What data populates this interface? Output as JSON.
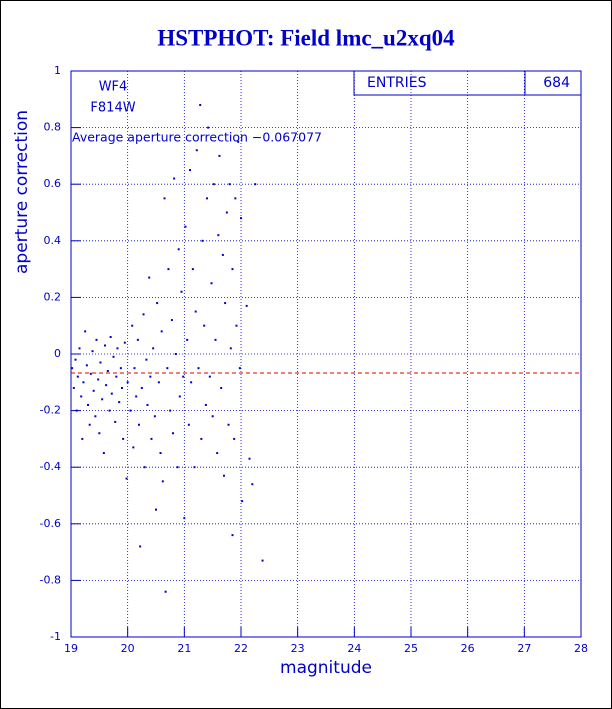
{
  "chart_data": {
    "type": "scatter",
    "title": "HSTPHOT: Field lmc_u2xq04",
    "xlabel": "magnitude",
    "ylabel": "aperture correction",
    "annotations": [
      "WF4",
      "F814W",
      "Average aperture correction −0.067077"
    ],
    "stats": {
      "label": "ENTRIES",
      "value": 684
    },
    "hline": -0.067077,
    "hline_color": "#e00000",
    "color": "#0000c8",
    "grid": true,
    "xlim": [
      19,
      28
    ],
    "xticks": [
      19,
      20,
      21,
      22,
      23,
      24,
      25,
      26,
      27,
      28
    ],
    "ylim": [
      -1,
      1
    ],
    "yticks": [
      -1,
      -0.8,
      -0.6,
      -0.4,
      -0.2,
      0,
      0.2,
      0.4,
      0.6,
      0.8,
      1
    ],
    "x": [
      19.02,
      19.05,
      19.08,
      19.1,
      19.12,
      19.15,
      19.18,
      19.2,
      19.22,
      19.25,
      19.28,
      19.3,
      19.33,
      19.35,
      19.38,
      19.4,
      19.43,
      19.45,
      19.48,
      19.5,
      19.52,
      19.55,
      19.58,
      19.6,
      19.62,
      19.65,
      19.68,
      19.7,
      19.72,
      19.75,
      19.78,
      19.8,
      19.82,
      19.85,
      19.88,
      19.9,
      19.92,
      19.95,
      19.98,
      20.0,
      20.05,
      20.08,
      20.1,
      20.12,
      20.15,
      20.18,
      20.2,
      20.22,
      20.25,
      20.28,
      20.3,
      20.33,
      20.35,
      20.38,
      20.4,
      20.42,
      20.45,
      20.48,
      20.5,
      20.52,
      20.55,
      20.58,
      20.6,
      20.62,
      20.65,
      20.67,
      20.7,
      20.72,
      20.75,
      20.78,
      20.8,
      20.82,
      20.85,
      20.88,
      20.9,
      20.92,
      20.95,
      20.98,
      21.0,
      21.02,
      21.05,
      21.08,
      21.1,
      21.12,
      21.15,
      21.18,
      21.2,
      21.22,
      21.25,
      21.28,
      21.3,
      21.32,
      21.35,
      21.38,
      21.4,
      21.42,
      21.45,
      21.48,
      21.5,
      21.52,
      21.55,
      21.58,
      21.6,
      21.62,
      21.65,
      21.68,
      21.7,
      21.72,
      21.75,
      21.78,
      21.8,
      21.82,
      21.85,
      21.88,
      21.9,
      21.92,
      21.95,
      21.98,
      22.0,
      22.02,
      22.1,
      22.15,
      22.2,
      22.25,
      22.38,
      21.85
    ],
    "values": [
      -0.05,
      -0.12,
      -0.02,
      -0.2,
      -0.08,
      0.02,
      -0.15,
      -0.3,
      -0.1,
      0.08,
      -0.04,
      -0.18,
      -0.25,
      -0.07,
      0.01,
      -0.13,
      -0.22,
      0.05,
      -0.09,
      -0.28,
      -0.03,
      -0.16,
      -0.35,
      0.03,
      -0.11,
      -0.06,
      -0.2,
      0.06,
      -0.14,
      -0.01,
      -0.24,
      -0.08,
      0.02,
      -0.17,
      -0.05,
      -0.12,
      -0.3,
      0.04,
      -0.44,
      -0.1,
      -0.2,
      0.1,
      -0.33,
      -0.05,
      -0.15,
      0.05,
      -0.25,
      -0.68,
      -0.12,
      0.14,
      -0.4,
      -0.02,
      -0.18,
      0.27,
      -0.08,
      -0.3,
      0.02,
      -0.22,
      -0.55,
      0.18,
      -0.1,
      -0.35,
      0.08,
      -0.45,
      0.55,
      -0.84,
      -0.05,
      0.3,
      -0.2,
      0.12,
      -0.28,
      0.62,
      0.0,
      -0.4,
      0.37,
      -0.15,
      0.22,
      -0.08,
      -0.58,
      0.45,
      0.05,
      -0.25,
      0.65,
      -0.1,
      0.3,
      -0.4,
      0.15,
      0.72,
      -0.05,
      0.88,
      -0.3,
      0.4,
      0.1,
      -0.18,
      0.55,
      0.8,
      -0.08,
      0.25,
      -0.22,
      0.6,
      0.05,
      -0.35,
      0.42,
      0.7,
      -0.12,
      0.35,
      -0.43,
      0.18,
      0.5,
      -0.25,
      0.6,
      0.02,
      0.3,
      -0.3,
      0.55,
      0.1,
      0.75,
      -0.05,
      0.48,
      -0.52,
      0.17,
      -0.37,
      -0.46,
      0.6,
      -0.73,
      -0.64
    ]
  }
}
